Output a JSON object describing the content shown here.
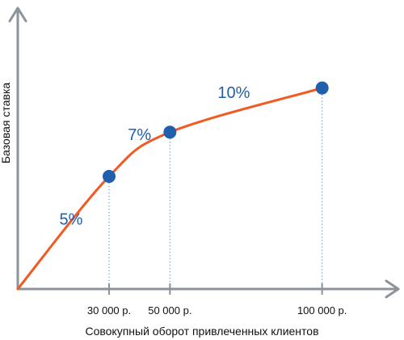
{
  "chart_data": {
    "type": "line",
    "title": "",
    "xlabel": "Совокупный оборот привлеченных клиентов",
    "ylabel": "Базовая ставка",
    "x_ticks": [
      {
        "value": 30000,
        "label": "30 000 р."
      },
      {
        "value": 50000,
        "label": "50 000 р."
      },
      {
        "value": 100000,
        "label": "100 000 р."
      }
    ],
    "points": [
      {
        "x": 0,
        "y": 0
      },
      {
        "x": 30000,
        "y": 0.56
      },
      {
        "x": 50000,
        "y": 0.78
      },
      {
        "x": 100000,
        "y": 1.0
      }
    ],
    "segment_labels": [
      {
        "text": "5%",
        "x": 17500,
        "y": 0.32
      },
      {
        "text": "7%",
        "x": 40000,
        "y": 0.74
      },
      {
        "text": "10%",
        "x": 71000,
        "y": 0.95
      }
    ],
    "xlim": [
      0,
      120000
    ],
    "ylim": [
      0,
      1.2
    ],
    "grid": false,
    "y_tick_labels": false,
    "colors": {
      "line": "#f25a22",
      "points": "#1f5fad",
      "labels": "#1f5fad",
      "axes": "#8c939b"
    }
  }
}
